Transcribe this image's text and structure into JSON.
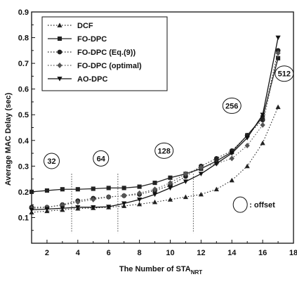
{
  "chart_data": {
    "type": "line",
    "title": "",
    "xlabel": "The Number of STA",
    "xlabel_sub": "NRT",
    "ylabel": "Average MAC Delay (sec)",
    "xlim": [
      1,
      18
    ],
    "ylim": [
      0.0,
      0.9
    ],
    "xticks": [
      2,
      4,
      6,
      8,
      10,
      12,
      14,
      16,
      18
    ],
    "yticks": [
      0.1,
      0.2,
      0.3,
      0.4,
      0.5,
      0.6,
      0.7,
      0.8,
      0.9
    ],
    "xtick_labels": [
      "2",
      "4",
      "6",
      "8",
      "10",
      "12",
      "14",
      "16",
      "18"
    ],
    "ytick_labels": [
      "0.1",
      "0.2",
      "0.3",
      "0.4",
      "0.5",
      "0.6",
      "0.7",
      "0.8",
      "0.9"
    ],
    "grid": false,
    "legend_position": "top-left",
    "series": [
      {
        "name": "DCF",
        "marker": "triangle-up",
        "linestyle": "dotted",
        "color": "#222222",
        "x": [
          1,
          2,
          3,
          4,
          5,
          6,
          7,
          8,
          9,
          10,
          11,
          12,
          13,
          14,
          15,
          16,
          17
        ],
        "y": [
          0.12,
          0.125,
          0.13,
          0.135,
          0.137,
          0.14,
          0.145,
          0.152,
          0.16,
          0.17,
          0.18,
          0.19,
          0.21,
          0.245,
          0.3,
          0.39,
          0.53
        ]
      },
      {
        "name": "FO-DPC",
        "marker": "square",
        "linestyle": "solid",
        "color": "#222222",
        "x": [
          1,
          2,
          3,
          4,
          5,
          6,
          7,
          8,
          9,
          10,
          11,
          12,
          13,
          14,
          15,
          16,
          17
        ],
        "y": [
          0.2,
          0.205,
          0.21,
          0.21,
          0.212,
          0.215,
          0.215,
          0.22,
          0.235,
          0.255,
          0.27,
          0.29,
          0.32,
          0.355,
          0.42,
          0.49,
          0.72
        ]
      },
      {
        "name": "FO-DPC (Eq.(9))",
        "marker": "circle",
        "linestyle": "dotted",
        "color": "#222222",
        "x": [
          1,
          2,
          3,
          4,
          5,
          6,
          7,
          8,
          9,
          10,
          11,
          12,
          13,
          14,
          15,
          16,
          17
        ],
        "y": [
          0.14,
          0.14,
          0.15,
          0.165,
          0.175,
          0.18,
          0.185,
          0.19,
          0.205,
          0.225,
          0.26,
          0.3,
          0.33,
          0.36,
          0.42,
          0.48,
          0.75
        ]
      },
      {
        "name": "FO-DPC (optimal)",
        "marker": "diamond",
        "linestyle": "dotted",
        "color": "#555555",
        "x": [
          1,
          2,
          3,
          4,
          5,
          6,
          7,
          8,
          9,
          10,
          11,
          12,
          13,
          14,
          15,
          16,
          17
        ],
        "y": [
          0.135,
          0.14,
          0.148,
          0.16,
          0.17,
          0.18,
          0.185,
          0.195,
          0.21,
          0.235,
          0.27,
          0.295,
          0.31,
          0.33,
          0.38,
          0.46,
          0.74
        ]
      },
      {
        "name": "AO-DPC",
        "marker": "triangle-down",
        "linestyle": "solid",
        "color": "#111111",
        "x": [
          1,
          2,
          3,
          4,
          5,
          6,
          7,
          8,
          9,
          10,
          11,
          12,
          13,
          14,
          15,
          16,
          17
        ],
        "y": [
          0.13,
          0.133,
          0.136,
          0.14,
          0.14,
          0.142,
          0.155,
          0.17,
          0.19,
          0.215,
          0.24,
          0.27,
          0.31,
          0.35,
          0.41,
          0.5,
          0.8
        ]
      }
    ],
    "offset_annotations": [
      {
        "label": "32",
        "x": 2.3,
        "y": 0.32
      },
      {
        "label": "64",
        "x": 5.5,
        "y": 0.33
      },
      {
        "label": "128",
        "x": 9.6,
        "y": 0.36
      },
      {
        "label": "256",
        "x": 14.0,
        "y": 0.535
      },
      {
        "label": "512",
        "x": 17.4,
        "y": 0.66
      }
    ],
    "section_dividers_x": [
      3.6,
      6.6,
      11.5
    ],
    "offset_legend": {
      "label": ": offset",
      "x": 15.0,
      "y": 0.15
    }
  }
}
